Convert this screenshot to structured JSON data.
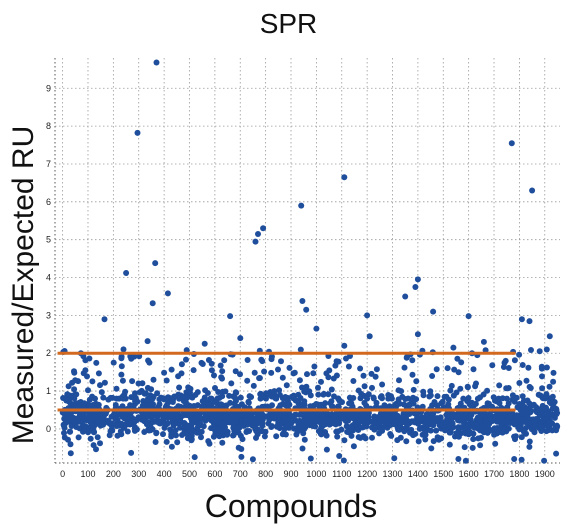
{
  "chart_data": {
    "type": "scatter",
    "title": "SPR",
    "xlabel": "Compounds",
    "ylabel": "Measured/Expected RU",
    "xlim": [
      -30,
      1960
    ],
    "ylim": [
      -0.9,
      9.8
    ],
    "xticks": [
      "0",
      "100",
      "200",
      "300",
      "400",
      "500",
      "600",
      "700",
      "800",
      "900",
      "1000",
      "1100",
      "1200",
      "1300",
      "1400",
      "1500",
      "1600",
      "1700",
      "1800",
      "1900"
    ],
    "yticks": [
      "0",
      "1",
      "2",
      "3",
      "4",
      "5",
      "6",
      "7",
      "8",
      "9"
    ],
    "grid": true,
    "point_color": "#1f4e9c",
    "threshold_color": "#d2691e",
    "thresholds": [
      {
        "y": 2.0,
        "x_start": -20,
        "x_end": 1785
      },
      {
        "y": 0.5,
        "x_start": -20,
        "x_end": 1785
      }
    ],
    "outliers": [
      {
        "x": 370,
        "y": 9.68
      },
      {
        "x": 295,
        "y": 7.82
      },
      {
        "x": 1770,
        "y": 7.55
      },
      {
        "x": 1110,
        "y": 6.65
      },
      {
        "x": 1850,
        "y": 6.3
      },
      {
        "x": 940,
        "y": 5.9
      },
      {
        "x": 790,
        "y": 5.3
      },
      {
        "x": 770,
        "y": 5.15
      },
      {
        "x": 760,
        "y": 4.95
      },
      {
        "x": 250,
        "y": 4.12
      },
      {
        "x": 365,
        "y": 4.38
      },
      {
        "x": 1400,
        "y": 3.95
      },
      {
        "x": 1390,
        "y": 3.75
      },
      {
        "x": 415,
        "y": 3.58
      },
      {
        "x": 1350,
        "y": 3.5
      },
      {
        "x": 355,
        "y": 3.32
      },
      {
        "x": 945,
        "y": 3.38
      },
      {
        "x": 960,
        "y": 3.15
      },
      {
        "x": 1460,
        "y": 3.1
      },
      {
        "x": 1200,
        "y": 3.0
      },
      {
        "x": 1600,
        "y": 2.98
      },
      {
        "x": 660,
        "y": 2.98
      },
      {
        "x": 165,
        "y": 2.9
      },
      {
        "x": 1810,
        "y": 2.9
      },
      {
        "x": 1840,
        "y": 2.85
      },
      {
        "x": 1000,
        "y": 2.65
      },
      {
        "x": 1400,
        "y": 2.5
      },
      {
        "x": 1210,
        "y": 2.45
      },
      {
        "x": 1920,
        "y": 2.45
      },
      {
        "x": 700,
        "y": 2.4
      },
      {
        "x": 335,
        "y": 2.32
      },
      {
        "x": 560,
        "y": 2.25
      },
      {
        "x": 1660,
        "y": 2.3
      },
      {
        "x": 1110,
        "y": 2.2
      },
      {
        "x": 240,
        "y": 2.1
      },
      {
        "x": 1880,
        "y": 2.05
      },
      {
        "x": 1540,
        "y": 2.15
      }
    ],
    "density_band": {
      "x_start": 0,
      "x_end": 1950,
      "center": 0.3,
      "spread": 0.45,
      "n": 1650
    },
    "upper_scatter": {
      "x_start": 0,
      "x_end": 1950,
      "y_low": 0.8,
      "y_high": 2.1,
      "n": 320
    },
    "lower_scatter": {
      "x_start": 0,
      "x_end": 1950,
      "y_low": -0.85,
      "y_high": -0.2,
      "n": 45
    }
  }
}
